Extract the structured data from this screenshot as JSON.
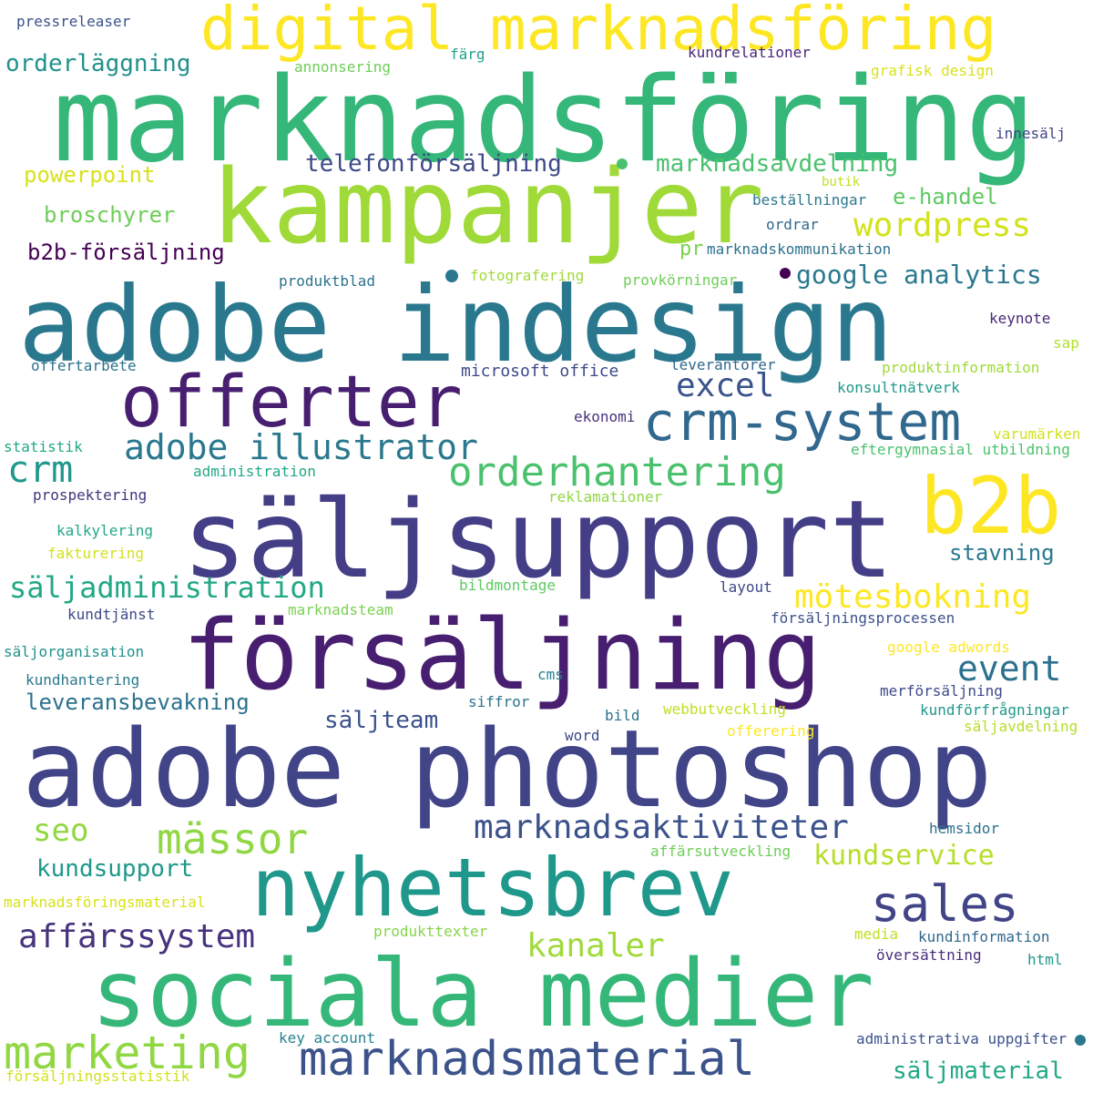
{
  "words": [
    {
      "text": "marknadsföring",
      "color": "#35b779"
    },
    {
      "text": "kampanjer",
      "color": "#a0da39"
    },
    {
      "text": "adobe indesign",
      "color": "#2a788e"
    },
    {
      "text": "säljsupport",
      "color": "#433e85"
    },
    {
      "text": "försäljning",
      "color": "#481f70"
    },
    {
      "text": "adobe photoshop",
      "color": "#414487"
    },
    {
      "text": "sociala medier",
      "color": "#35b779"
    },
    {
      "text": "nyhetsbrev",
      "color": "#1f988b"
    },
    {
      "text": "offerter",
      "color": "#481f70"
    },
    {
      "text": "digital marknadsföring",
      "color": "#fde725"
    },
    {
      "text": "b2b",
      "color": "#fde725"
    },
    {
      "text": "crm-system",
      "color": "#31688e"
    },
    {
      "text": "marknadsmaterial",
      "color": "#3b528b"
    },
    {
      "text": "sales",
      "color": "#414487"
    },
    {
      "text": "marketing",
      "color": "#90d743"
    },
    {
      "text": "mässor",
      "color": "#90d743"
    },
    {
      "text": "orderhantering",
      "color": "#4ac16d"
    },
    {
      "text": "adobe illustrator",
      "color": "#2a788e"
    },
    {
      "text": "affärssystem",
      "color": "#46337e"
    },
    {
      "text": "wordpress",
      "color": "#d2e21b"
    },
    {
      "text": "mötesbokning",
      "color": "#fde725"
    },
    {
      "text": "marknadsaktiviteter",
      "color": "#3b528b"
    },
    {
      "text": "säljadministration",
      "color": "#22a884"
    },
    {
      "text": "kundservice",
      "color": "#b5de2b"
    },
    {
      "text": "crm",
      "color": "#1f988b"
    },
    {
      "text": "excel",
      "color": "#3b528b"
    },
    {
      "text": "kanaler",
      "color": "#a0da39"
    },
    {
      "text": "event",
      "color": "#2c728e"
    },
    {
      "text": "seo",
      "color": "#90d743"
    },
    {
      "text": "google analytics",
      "color": "#2a788e"
    },
    {
      "text": "telefonförsäljning",
      "color": "#3e4989"
    },
    {
      "text": "marknadsavdelning",
      "color": "#4ac16d"
    },
    {
      "text": "orderläggning",
      "color": "#21918c"
    },
    {
      "text": "leveransbevakning",
      "color": "#2c728e"
    },
    {
      "text": "säljteam",
      "color": "#3b528b"
    },
    {
      "text": "kundsupport",
      "color": "#1f988b"
    },
    {
      "text": "stavning",
      "color": "#2a788e"
    },
    {
      "text": "b2b-försäljning",
      "color": "#440154"
    },
    {
      "text": "broschyrer",
      "color": "#6ece58"
    },
    {
      "text": "säljmaterial",
      "color": "#22a884"
    },
    {
      "text": "e-handel",
      "color": "#5ec962"
    },
    {
      "text": "powerpoint",
      "color": "#d8e219"
    },
    {
      "text": "pr",
      "color": "#7ad151"
    },
    {
      "text": "pressreleaser",
      "color": "#3b528b"
    },
    {
      "text": "annonsering",
      "color": "#6ece58"
    },
    {
      "text": "färg",
      "color": "#1fa187"
    },
    {
      "text": "kundrelationer",
      "color": "#482878"
    },
    {
      "text": "grafisk design",
      "color": "#d8e219"
    },
    {
      "text": "innesälj",
      "color": "#414487"
    },
    {
      "text": "beställningar",
      "color": "#2a788e"
    },
    {
      "text": "butik",
      "color": "#c2df23"
    },
    {
      "text": "ordrar",
      "color": "#31688e"
    },
    {
      "text": "marknadskommunikation",
      "color": "#2c728e"
    },
    {
      "text": "produktblad",
      "color": "#2c728e"
    },
    {
      "text": "fotografering",
      "color": "#a0da39"
    },
    {
      "text": "provkörningar",
      "color": "#6ece58"
    },
    {
      "text": "keynote",
      "color": "#482878"
    },
    {
      "text": "sap",
      "color": "#b5de2b"
    },
    {
      "text": "offertarbete",
      "color": "#2c728e"
    },
    {
      "text": "microsoft office",
      "color": "#3e4989"
    },
    {
      "text": "leverantörer",
      "color": "#31688e"
    },
    {
      "text": "produktinformation",
      "color": "#a0da39"
    },
    {
      "text": "konsultnätverk",
      "color": "#1f988b"
    },
    {
      "text": "ekonomi",
      "color": "#46337e"
    },
    {
      "text": "varumärken",
      "color": "#d2e21b"
    },
    {
      "text": "statistik",
      "color": "#22a884"
    },
    {
      "text": "eftergymnasial utbildning",
      "color": "#4ac16d"
    },
    {
      "text": "administration",
      "color": "#22a884"
    },
    {
      "text": "prospektering",
      "color": "#46337e"
    },
    {
      "text": "reklamationer",
      "color": "#90d743"
    },
    {
      "text": "kalkylering",
      "color": "#22a884"
    },
    {
      "text": "fakturering",
      "color": "#d2e21b"
    },
    {
      "text": "bildmontage",
      "color": "#5ec962"
    },
    {
      "text": "layout",
      "color": "#3e4989"
    },
    {
      "text": "kundtjänst",
      "color": "#3e4989"
    },
    {
      "text": "marknadsteam",
      "color": "#7ad151"
    },
    {
      "text": "försäljningsprocessen",
      "color": "#3b528b"
    },
    {
      "text": "säljorganisation",
      "color": "#21918c"
    },
    {
      "text": "google adwords",
      "color": "#fde725"
    },
    {
      "text": "kundhantering",
      "color": "#2a788e"
    },
    {
      "text": "cms",
      "color": "#26828e"
    },
    {
      "text": "siffror",
      "color": "#2c728e"
    },
    {
      "text": "merförsäljning",
      "color": "#3e4989"
    },
    {
      "text": "webbutveckling",
      "color": "#c2df23"
    },
    {
      "text": "bild",
      "color": "#2c728e"
    },
    {
      "text": "kundförfrågningar",
      "color": "#1f988b"
    },
    {
      "text": "word",
      "color": "#3e4989"
    },
    {
      "text": "offerering",
      "color": "#fde725"
    },
    {
      "text": "säljavdelning",
      "color": "#b5de2b"
    },
    {
      "text": "hemsidor",
      "color": "#2c728e"
    },
    {
      "text": "affärsutveckling",
      "color": "#6ece58"
    },
    {
      "text": "marknadsföringsmaterial",
      "color": "#d8e219"
    },
    {
      "text": "produkttexter",
      "color": "#86d549"
    },
    {
      "text": "media",
      "color": "#c2df23"
    },
    {
      "text": "kundinformation",
      "color": "#31688e"
    },
    {
      "text": "översättning",
      "color": "#472d7b"
    },
    {
      "text": "html",
      "color": "#1f988b"
    },
    {
      "text": "key account",
      "color": "#26828e"
    },
    {
      "text": "administrativa uppgifter",
      "color": "#3b528b"
    },
    {
      "text": "försäljningsstatistik",
      "color": "#d2e21b"
    }
  ]
}
